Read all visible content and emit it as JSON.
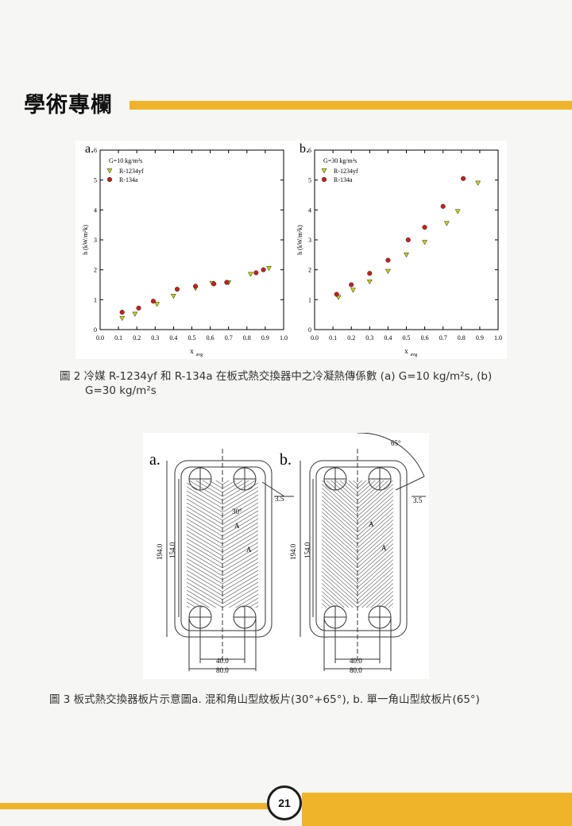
{
  "header": {
    "section_title": "學術專欄"
  },
  "figure2": {
    "caption_line1": "圖 2 冷媒 R-1234yf 和 R-134a 在板式熱交換器中之冷凝熱傳係數 (a) G=10 kg/m²s, (b)",
    "caption_line2": "G=30 kg/m²s"
  },
  "chart_data": [
    {
      "type": "scatter",
      "panel_label": "a.",
      "annotation": "G=10 kg/m²s",
      "xlabel": "x_avg",
      "ylabel": "h (kW/m²k)",
      "xlim": [
        0.0,
        1.0
      ],
      "ylim": [
        0,
        6
      ],
      "x_ticks": [
        "0.0",
        "0.1",
        "0.2",
        "0.3",
        "0.4",
        "0.5",
        "0.6",
        "0.7",
        "0.8",
        "0.9",
        "1.0"
      ],
      "y_ticks": [
        "0",
        "1",
        "2",
        "3",
        "4",
        "5",
        "6"
      ],
      "legend_position": "top-left",
      "series": [
        {
          "name": "R-1234yf",
          "marker": "triangle-down",
          "color": "#c8d400",
          "points": [
            [
              0.12,
              0.38
            ],
            [
              0.19,
              0.52
            ],
            [
              0.31,
              0.85
            ],
            [
              0.4,
              1.12
            ],
            [
              0.52,
              1.38
            ],
            [
              0.61,
              1.55
            ],
            [
              0.7,
              1.57
            ],
            [
              0.82,
              1.85
            ],
            [
              0.92,
              2.05
            ]
          ]
        },
        {
          "name": "R-134a",
          "marker": "circle",
          "color": "#d11a1a",
          "points": [
            [
              0.12,
              0.58
            ],
            [
              0.21,
              0.72
            ],
            [
              0.29,
              0.95
            ],
            [
              0.42,
              1.35
            ],
            [
              0.52,
              1.45
            ],
            [
              0.62,
              1.53
            ],
            [
              0.69,
              1.58
            ],
            [
              0.85,
              1.9
            ],
            [
              0.89,
              2.0
            ]
          ]
        }
      ]
    },
    {
      "type": "scatter",
      "panel_label": "b.",
      "annotation": "G=30 kg/m²s",
      "xlabel": "x_avg",
      "ylabel": "h (kW/m²k)",
      "xlim": [
        0.0,
        1.0
      ],
      "ylim": [
        0,
        6
      ],
      "x_ticks": [
        "0.0",
        "0.1",
        "0.2",
        "0.3",
        "0.4",
        "0.5",
        "0.6",
        "0.7",
        "0.8",
        "0.9",
        "1.0"
      ],
      "y_ticks": [
        "0",
        "1",
        "2",
        "3",
        "4",
        "5",
        "6"
      ],
      "legend_position": "top-left",
      "series": [
        {
          "name": "R-1234yf",
          "marker": "triangle-down",
          "color": "#c8d400",
          "points": [
            [
              0.13,
              1.08
            ],
            [
              0.21,
              1.32
            ],
            [
              0.3,
              1.6
            ],
            [
              0.4,
              1.95
            ],
            [
              0.5,
              2.5
            ],
            [
              0.6,
              2.92
            ],
            [
              0.72,
              3.55
            ],
            [
              0.78,
              3.95
            ],
            [
              0.89,
              4.9
            ]
          ]
        },
        {
          "name": "R-134a",
          "marker": "circle",
          "color": "#d11a1a",
          "points": [
            [
              0.12,
              1.18
            ],
            [
              0.2,
              1.5
            ],
            [
              0.3,
              1.88
            ],
            [
              0.4,
              2.32
            ],
            [
              0.51,
              3.0
            ],
            [
              0.6,
              3.42
            ],
            [
              0.7,
              4.12
            ],
            [
              0.81,
              5.05
            ]
          ]
        }
      ]
    }
  ],
  "figure3": {
    "panel_a": "a.",
    "panel_b": "b.",
    "dim_194": "194.0",
    "dim_154": "154.0",
    "dim_40": "40.0",
    "dim_80": "80.0",
    "dim_3_5": "3.5",
    "angle_a": "30°",
    "angle_b": "65°",
    "label_A": "A",
    "caption": "圖 3 板式熱交換器板片示意圖a. 混和角山型紋板片(30°+65°), b. 單一角山型紋板片(65°)"
  },
  "footer": {
    "page_number": "21"
  }
}
